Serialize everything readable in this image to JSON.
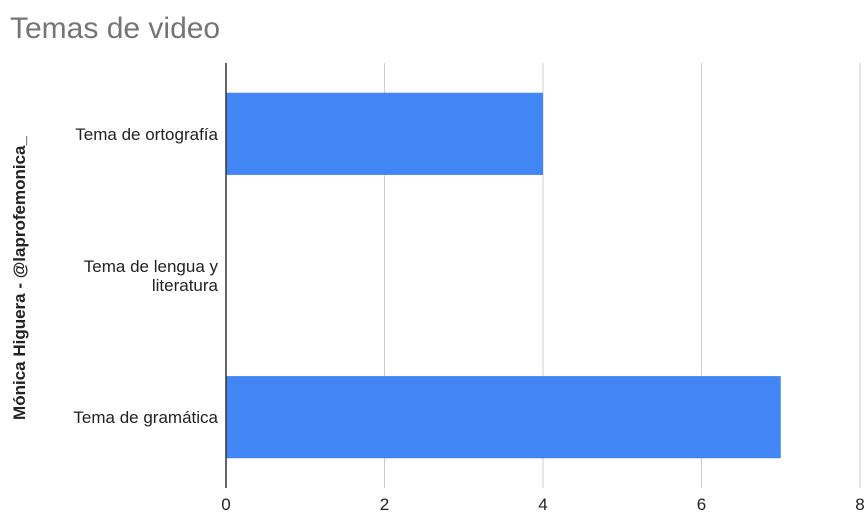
{
  "chart_data": {
    "type": "bar",
    "orientation": "horizontal",
    "title": "Temas de video",
    "xlabel": "",
    "ylabel": "Mónica Higuera - @laprofemonica_",
    "categories": [
      [
        "Tema de ortografía"
      ],
      [
        "Tema de lengua y",
        "literatura"
      ],
      [
        "Tema de gramática"
      ]
    ],
    "values": [
      4,
      0,
      7
    ],
    "xlim": [
      0,
      8
    ],
    "xticks": [
      "0",
      "2",
      "4",
      "6",
      "8"
    ],
    "grid": true,
    "legend": "none",
    "bar_color": "#4285F4",
    "grid_color": "#cccccc",
    "axis_color": "#333333"
  }
}
